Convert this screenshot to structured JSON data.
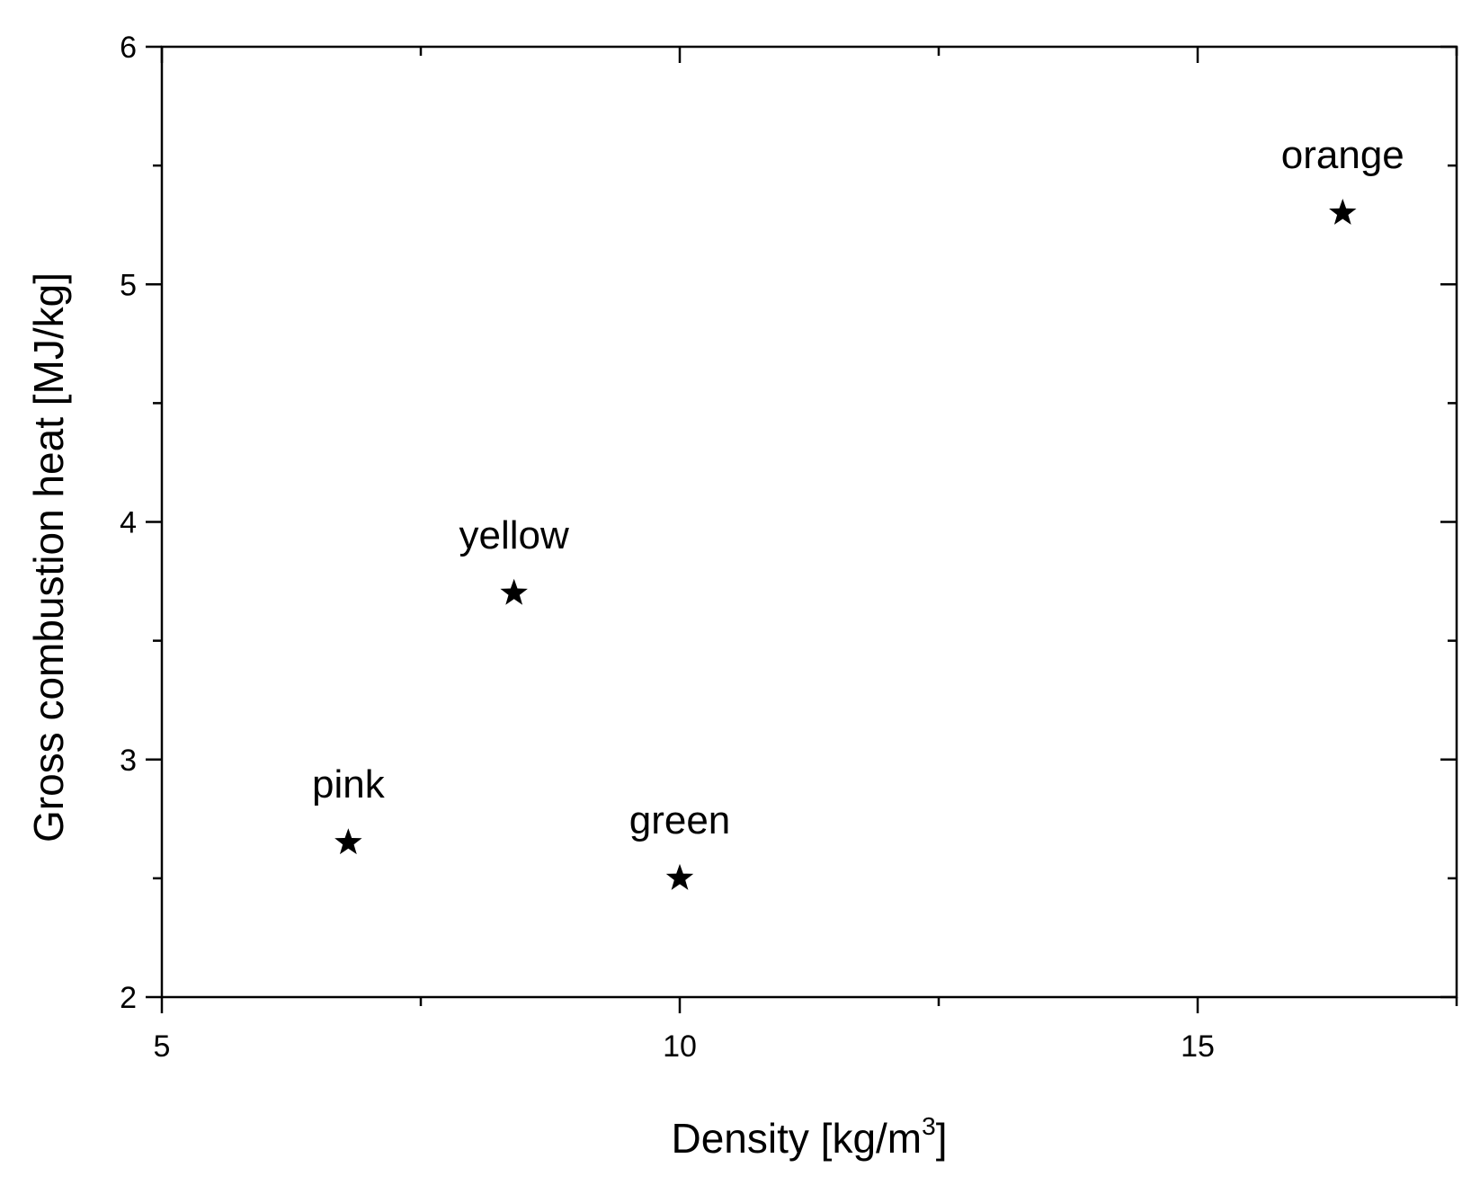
{
  "chart_data": {
    "type": "scatter",
    "title": "",
    "xlabel": "Density [kg/m",
    "xlabel_superscript": "3",
    "xlabel_suffix": "]",
    "ylabel": "Gross combustion heat [MJ/kg]",
    "xlim": [
      5,
      17.5
    ],
    "ylim": [
      2,
      6
    ],
    "x_ticks": [
      5,
      10,
      15
    ],
    "y_ticks": [
      2,
      3,
      4,
      5,
      6
    ],
    "x_tick_labels": [
      "5",
      "10",
      "15"
    ],
    "y_tick_labels": [
      "2",
      "3",
      "4",
      "5",
      "6"
    ],
    "grid": false,
    "marker": "star",
    "marker_color": "#000000",
    "points": [
      {
        "label": "pink",
        "x": 6.8,
        "y": 2.65
      },
      {
        "label": "yellow",
        "x": 8.4,
        "y": 3.7
      },
      {
        "label": "green",
        "x": 10.0,
        "y": 2.5
      },
      {
        "label": "orange",
        "x": 16.4,
        "y": 5.3
      }
    ]
  }
}
